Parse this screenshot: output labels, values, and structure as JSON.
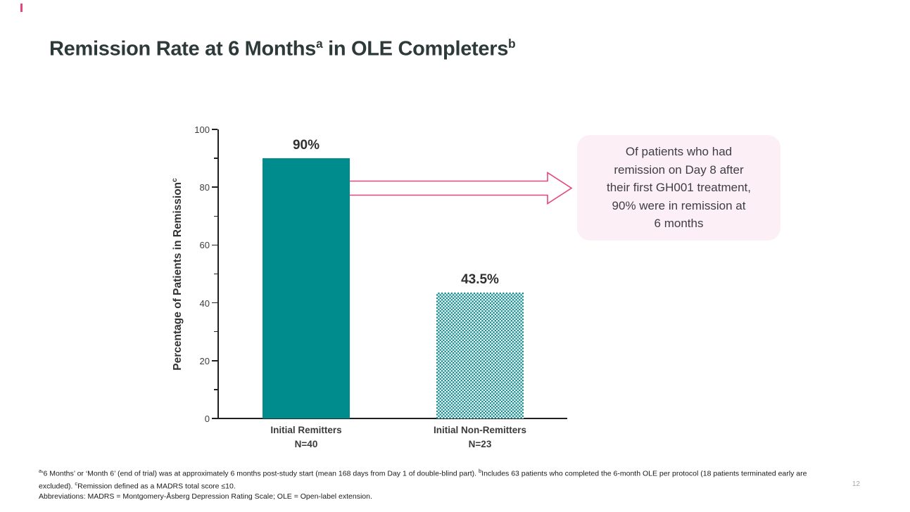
{
  "colors": {
    "teal": "#008B8C",
    "pink": "#E8457D",
    "callout_bg": "#FCEFF5",
    "title_color": "#2E3A39",
    "axis_color": "#202020",
    "page_gray": "#A6A6A6"
  },
  "title": {
    "part1": "Remission Rate at 6 Months",
    "sup1": "a",
    "part2": " in OLE Completers",
    "sup2": "b"
  },
  "chart_data": {
    "type": "bar",
    "title": "",
    "categories": [
      "Initial Remitters",
      "Initial Non-Remitters"
    ],
    "values": [
      90,
      43.5
    ],
    "value_labels": [
      "90%",
      "43.5%"
    ],
    "n_labels": [
      "N=40",
      "N=23"
    ],
    "xlabel": "",
    "ylabel": "Percentage of Patients in Remission",
    "ylabel_sup": "c",
    "ylim": [
      0,
      100
    ],
    "ytick_labels": [
      "0",
      "20",
      "40",
      "60",
      "80",
      "100"
    ],
    "minor_ticks": [
      10,
      30,
      50,
      70,
      90
    ],
    "grid": false,
    "legend": "none",
    "bar_styles": [
      "solid-teal",
      "teal-white-checker"
    ]
  },
  "callout": {
    "lines": [
      "Of patients who had",
      "remission on Day 8 after",
      "their first GH001 treatment,",
      "90% were in remission at",
      "6 months"
    ]
  },
  "footnotes": {
    "line1_sup1": "a",
    "line1_part1": "‘6 Months’ or ‘Month 6’ (end of trial) was at approximately 6 months post-study start (mean 168 days from Day 1 of double-blind part). ",
    "line1_sup2": "b",
    "line1_part2": "Includes 63 patients who completed the 6-month OLE per protocol (18 patients terminated early are",
    "line2_part1": "excluded). ",
    "line2_sup": "c",
    "line2_part2": "Remission defined as a MADRS total score ≤10.",
    "line3": "Abbreviations: MADRS = Montgomery-Åsberg Depression Rating Scale; OLE = Open-label extension."
  },
  "page_number": "12"
}
